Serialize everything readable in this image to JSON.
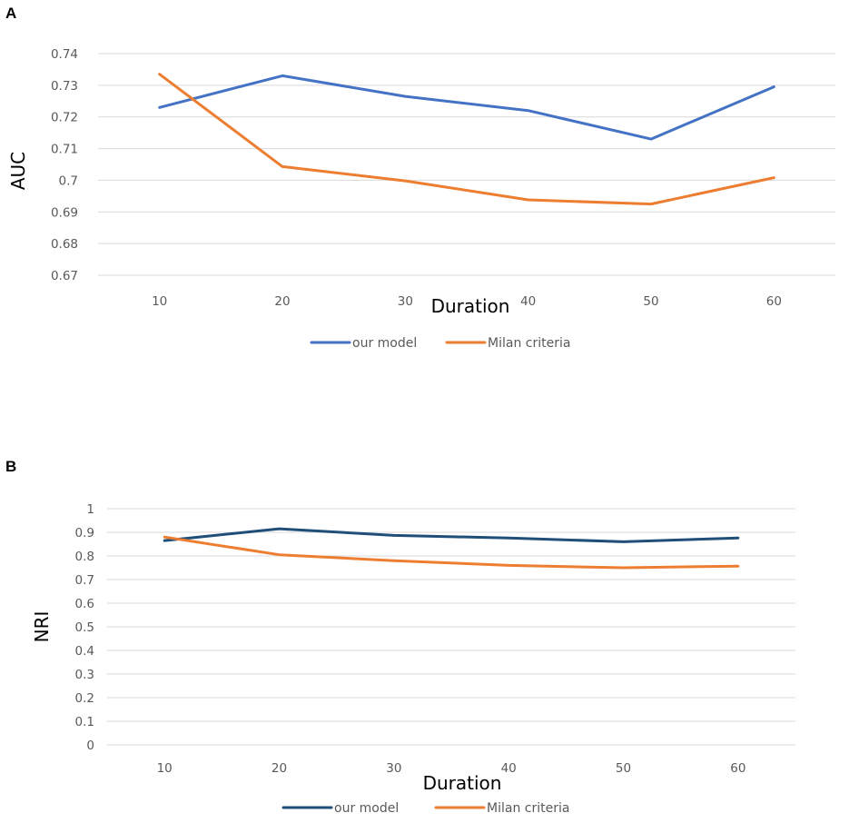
{
  "chart_data": [
    {
      "panel": "A",
      "type": "line",
      "x": [
        10,
        20,
        30,
        40,
        50,
        60
      ],
      "series": [
        {
          "name": "our model",
          "color": "#4472C4",
          "values": [
            0.723,
            0.733,
            0.7265,
            0.722,
            0.713,
            0.7295
          ]
        },
        {
          "name": "Milan criteria",
          "color": "#ED7D31",
          "values": [
            0.7335,
            0.7043,
            0.6998,
            0.6938,
            0.6925,
            0.7008
          ]
        }
      ],
      "yticks": [
        "0.67",
        "0.68",
        "0.69",
        "0.7",
        "0.71",
        "0.72",
        "0.73",
        "0.74"
      ],
      "ylim": [
        0.67,
        0.74
      ],
      "xlabel": "Duration",
      "ylabel": "AUC",
      "grid": true,
      "legend": "bottom"
    },
    {
      "panel": "B",
      "type": "line",
      "x": [
        10,
        20,
        30,
        40,
        50,
        60
      ],
      "series": [
        {
          "name": "our model",
          "color": "#1F4E79",
          "values": [
            0.865,
            0.915,
            0.887,
            0.876,
            0.86,
            0.876
          ]
        },
        {
          "name": "Milan criteria",
          "color": "#ED7D31",
          "values": [
            0.88,
            0.805,
            0.78,
            0.76,
            0.75,
            0.757
          ]
        }
      ],
      "yticks": [
        "0",
        "0.1",
        "0.2",
        "0.3",
        "0.4",
        "0.5",
        "0.6",
        "0.7",
        "0.8",
        "0.9",
        "1"
      ],
      "ylim": [
        0,
        1
      ],
      "xlabel": "Duration",
      "ylabel": "NRI",
      "grid": true,
      "legend": "bottom"
    }
  ]
}
